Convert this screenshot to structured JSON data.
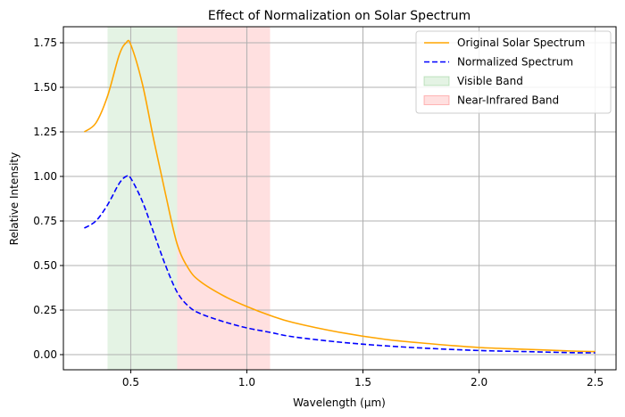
{
  "chart_data": {
    "type": "line",
    "title": "Effect of Normalization on Solar Spectrum",
    "xlabel": "Wavelength (μm)",
    "ylabel": "Relative Intensity",
    "xlim": [
      0.21,
      2.59
    ],
    "ylim": [
      -0.085,
      1.84
    ],
    "grid": true,
    "legend_position": "top-right",
    "x_ticks": [
      0.5,
      1.0,
      1.5,
      2.0,
      2.5
    ],
    "x_tick_labels": [
      "0.5",
      "1.0",
      "1.5",
      "2.0",
      "2.5"
    ],
    "y_ticks": [
      0.0,
      0.25,
      0.5,
      0.75,
      1.0,
      1.25,
      1.5,
      1.75
    ],
    "y_tick_labels": [
      "0.00",
      "0.25",
      "0.50",
      "0.75",
      "1.00",
      "1.25",
      "1.50",
      "1.75"
    ],
    "bands": [
      {
        "name": "Visible Band",
        "x_range": [
          0.4,
          0.7
        ],
        "color": "#2ca02c",
        "opacity": 0.13
      },
      {
        "name": "Near-Infrared Band",
        "x_range": [
          0.7,
          1.1
        ],
        "color": "#ff0000",
        "opacity": 0.12
      }
    ],
    "x": [
      0.3,
      0.35,
      0.4,
      0.45,
      0.48,
      0.5,
      0.55,
      0.6,
      0.65,
      0.7,
      0.75,
      0.8,
      0.9,
      1.0,
      1.1,
      1.2,
      1.4,
      1.6,
      1.8,
      2.0,
      2.2,
      2.4,
      2.5
    ],
    "series": [
      {
        "name": "Original Solar Spectrum",
        "color": "#ffa500",
        "dash": "solid",
        "values": [
          1.25,
          1.3,
          1.45,
          1.68,
          1.75,
          1.74,
          1.52,
          1.2,
          0.9,
          0.62,
          0.48,
          0.41,
          0.33,
          0.27,
          0.22,
          0.18,
          0.125,
          0.085,
          0.06,
          0.04,
          0.03,
          0.02,
          0.017
        ]
      },
      {
        "name": "Normalized Spectrum",
        "color": "#0000ff",
        "dash": "dashed",
        "values": [
          0.71,
          0.75,
          0.84,
          0.96,
          1.0,
          0.99,
          0.86,
          0.68,
          0.5,
          0.35,
          0.27,
          0.23,
          0.185,
          0.15,
          0.125,
          0.1,
          0.07,
          0.049,
          0.034,
          0.023,
          0.017,
          0.011,
          0.01
        ]
      }
    ]
  }
}
